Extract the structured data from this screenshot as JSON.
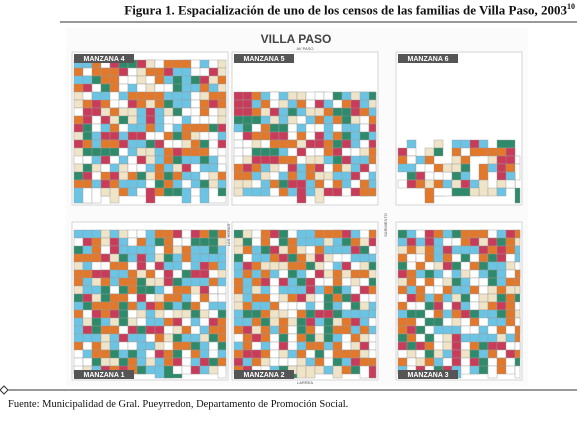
{
  "figure": {
    "title": "Figura 1. Espacialización de uno de los censos de las familias de Villa Paso, 2003",
    "title_note": "10",
    "map_title": "VILLA PASO",
    "streets": [
      "AV PASO",
      "LAS HERAS",
      "SARMIENTO",
      "LARREA"
    ],
    "blocks": [
      "MANZANA 4",
      "MANZANA 5",
      "MANZANA 6",
      "MANZANA 1",
      "MANZANA 2",
      "MANZANA 3"
    ],
    "source": "Fuente: Municipalidad de Gral. Pueyrredon, Departamento de Promoción Social."
  }
}
